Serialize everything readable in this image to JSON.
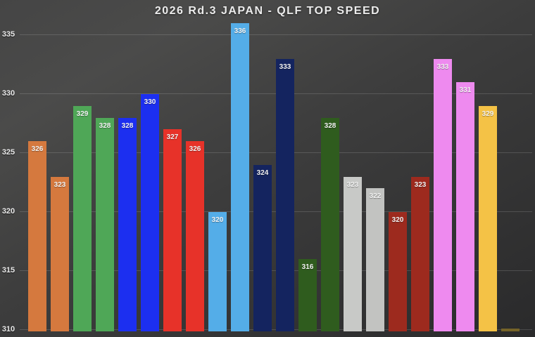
{
  "title": "2026 Rd.3 JAPAN - QLF TOP SPEED",
  "colors": {
    "background_light": "#4b4b4a",
    "background_dark": "#2a2a2b",
    "gridline": "rgba(255,255,255,0.15)",
    "axis_text": "#e9e9e9",
    "bar_label_text": "#f2f2f2"
  },
  "chart_data": {
    "type": "bar",
    "title": "2026 Rd.3 JAPAN - QLF TOP SPEED",
    "xlabel": "",
    "ylabel": "",
    "y_ticks": [
      310,
      315,
      320,
      325,
      330,
      335
    ],
    "ylim": [
      309.9,
      338
    ],
    "grid": true,
    "legend": false,
    "bars": [
      {
        "value": 326,
        "label": "326",
        "color": "#d5793e"
      },
      {
        "value": 323,
        "label": "323",
        "color": "#d5793e"
      },
      {
        "value": 329,
        "label": "329",
        "color": "#4fa757"
      },
      {
        "value": 328,
        "label": "328",
        "color": "#4fa757"
      },
      {
        "value": 328,
        "label": "328",
        "color": "#1c2ff0"
      },
      {
        "value": 330,
        "label": "330",
        "color": "#1c2ff0"
      },
      {
        "value": 327,
        "label": "327",
        "color": "#e73229"
      },
      {
        "value": 326,
        "label": "326",
        "color": "#e73229"
      },
      {
        "value": 320,
        "label": "320",
        "color": "#54ade8"
      },
      {
        "value": 336,
        "label": "336",
        "color": "#54ade8"
      },
      {
        "value": 324,
        "label": "324",
        "color": "#14245f"
      },
      {
        "value": 333,
        "label": "333",
        "color": "#14245f"
      },
      {
        "value": 316,
        "label": "316",
        "color": "#2f5c1e"
      },
      {
        "value": 328,
        "label": "328",
        "color": "#2f5c1e"
      },
      {
        "value": 323,
        "label": "323",
        "color": "#c8c9c7"
      },
      {
        "value": 322,
        "label": "322",
        "color": "#c2c3c1"
      },
      {
        "value": 320,
        "label": "320",
        "color": "#9d2a1e"
      },
      {
        "value": 323,
        "label": "323",
        "color": "#9d2a1e"
      },
      {
        "value": 333,
        "label": "333",
        "color": "#ee8aef"
      },
      {
        "value": 331,
        "label": "331",
        "color": "#ee8aef"
      },
      {
        "value": 329,
        "label": "329",
        "color": "#f4c246"
      },
      {
        "value": 310.1,
        "label": "",
        "color": "#756328"
      }
    ]
  }
}
